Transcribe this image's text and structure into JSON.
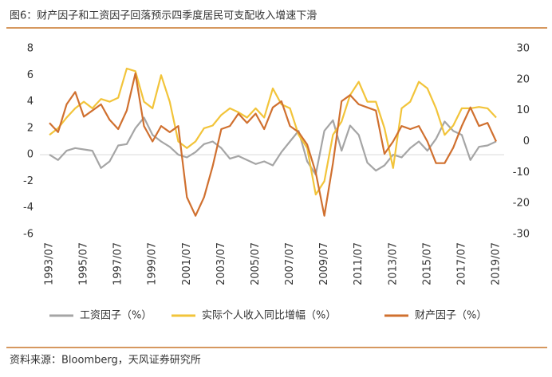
{
  "chart_data": {
    "type": "line",
    "title": "图6：财产因子和工资因子回落预示四季度居民可支配收入增速下滑",
    "source": "资料来源：Bloomberg，天风证券研究所",
    "categories": [
      "1993/07",
      null,
      null,
      null,
      "1995/07",
      null,
      null,
      null,
      "1997/07",
      null,
      null,
      null,
      "1999/07",
      null,
      null,
      null,
      "2001/07",
      null,
      null,
      null,
      "2003/07",
      null,
      null,
      null,
      "2005/07",
      null,
      null,
      null,
      "2007/07",
      null,
      null,
      null,
      "2009/07",
      null,
      null,
      null,
      "2011/07",
      null,
      null,
      null,
      "2013/07",
      null,
      null,
      null,
      "2015/07",
      null,
      null,
      null,
      "2017/07",
      null,
      null,
      null,
      "2019/07"
    ],
    "series": [
      {
        "name": "工资因子（%）",
        "color": "#a5a5a5",
        "values": [
          0,
          -0.4,
          0.3,
          0.5,
          0.4,
          0.3,
          -1.0,
          -0.5,
          0.7,
          0.8,
          2.0,
          2.8,
          1.5,
          1.0,
          0.6,
          0.0,
          -0.2,
          0.2,
          0.8,
          1.0,
          0.5,
          -0.3,
          -0.1,
          -0.4,
          -0.7,
          -0.5,
          -0.8,
          0.2,
          1.0,
          1.8,
          -0.5,
          -1.5,
          1.8,
          2.6,
          0.3,
          2.2,
          1.5,
          -0.6,
          -1.2,
          -0.8,
          0.0,
          -0.2,
          0.5,
          1.0,
          0.3,
          1.2,
          2.5,
          1.8,
          1.5,
          -0.4,
          0.6,
          0.7,
          1.0
        ]
      },
      {
        "name": "实际个人收入同比增幅（%）",
        "color": "#f2c43a",
        "values": [
          1.5,
          2.0,
          2.8,
          3.5,
          4.0,
          3.5,
          4.2,
          4.0,
          4.3,
          6.5,
          6.3,
          4.0,
          3.5,
          6.0,
          4.0,
          1.0,
          0.5,
          1.0,
          2.0,
          2.2,
          3.0,
          3.5,
          3.2,
          2.8,
          3.5,
          2.8,
          5.0,
          3.8,
          3.5,
          1.5,
          0.5,
          -3.0,
          -2.0,
          1.5,
          2.5,
          4.5,
          5.5,
          4.0,
          4.0,
          2.0,
          -1.0,
          3.5,
          4.0,
          5.5,
          5.0,
          3.5,
          1.5,
          2.2,
          3.5,
          3.5,
          3.6,
          3.5,
          2.8
        ]
      },
      {
        "name": "财产因子（%）",
        "color": "#d0702f",
        "axis": "y2",
        "values": [
          6,
          3,
          12,
          16,
          8,
          10,
          12,
          7,
          4,
          10,
          22,
          5,
          0,
          5,
          3,
          5,
          -18,
          -24,
          -18,
          -8,
          4,
          5,
          9,
          6,
          9,
          4,
          11,
          13,
          5,
          3,
          -1,
          -10,
          -24,
          -7,
          13,
          15,
          12,
          11,
          10,
          -4,
          0,
          5,
          4,
          5,
          0,
          -7,
          -7,
          -2,
          5,
          11,
          5,
          6,
          0
        ]
      }
    ],
    "ylim": [
      -6,
      8
    ],
    "yticks": [
      -6,
      -4,
      -2,
      0,
      2,
      4,
      6,
      8
    ],
    "y2lim": [
      -30,
      30
    ],
    "y2ticks": [
      -30,
      -20,
      -10,
      0,
      10,
      20,
      30
    ]
  }
}
